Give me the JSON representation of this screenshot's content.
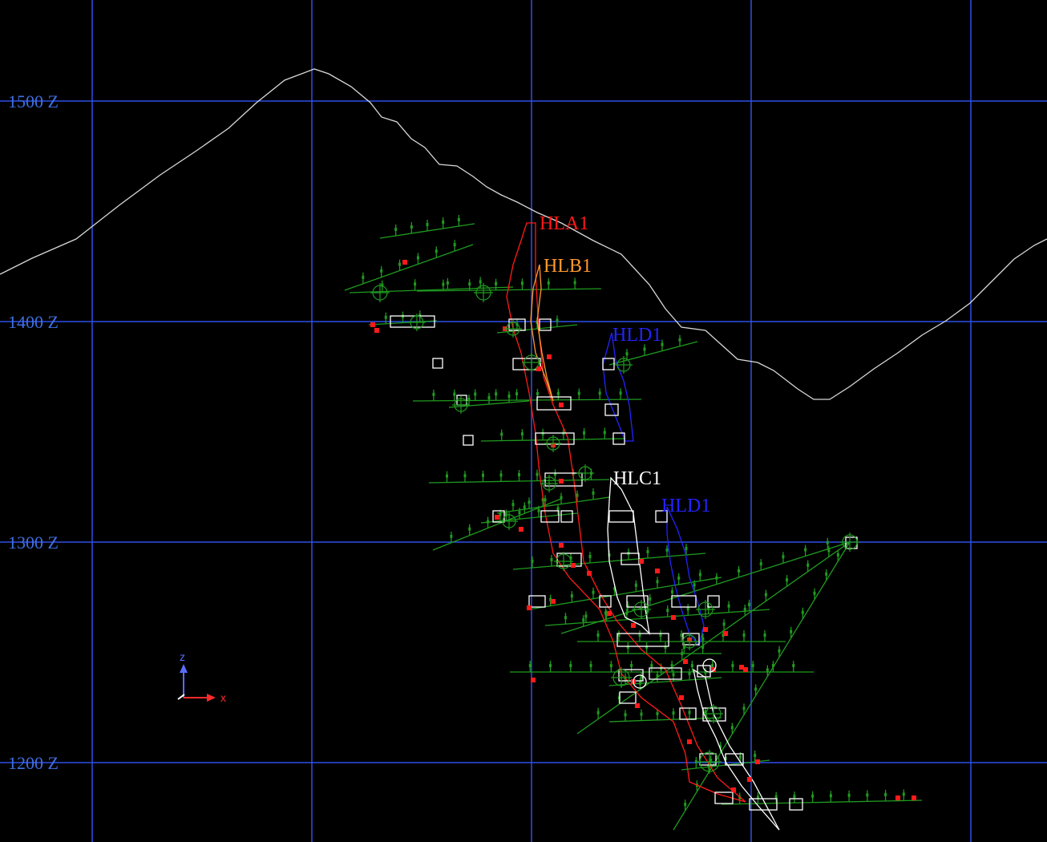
{
  "view": {
    "grid_color": "#2f4fe8",
    "background_color": "#000000",
    "z_levels": [
      {
        "label": "1500 Z",
        "value": 1500
      },
      {
        "label": "1400 Z",
        "value": 1400
      },
      {
        "label": "1300 Z",
        "value": 1300
      },
      {
        "label": "1200 Z",
        "value": 1200
      }
    ]
  },
  "seams": [
    {
      "label": "HLA1",
      "color": "#ff1a1a"
    },
    {
      "label": "HLB1",
      "color": "#ff9a2e"
    },
    {
      "label": "HLD1",
      "color": "#2323ff"
    },
    {
      "label": "HLC1",
      "color": "#ffffff"
    },
    {
      "label": "HLD1",
      "color": "#2323ff"
    }
  ],
  "axis_gizmo": {
    "z_label": "z",
    "x_label": "x",
    "z_color": "#5a6cff",
    "x_color": "#ff2a2a"
  },
  "colors": {
    "topography": "#d8d8d8",
    "drillholes": "#1f9a1f",
    "samples": "#ff1a1a",
    "blocks": "#ffffff"
  },
  "icons": {
    "axis": "xyz-axis-gizmo-icon",
    "target": "crosshair-target-icon"
  }
}
